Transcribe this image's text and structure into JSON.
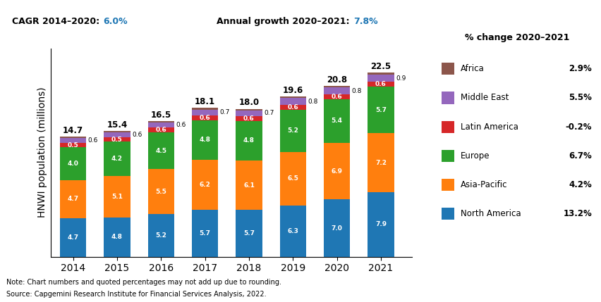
{
  "chart_data": {
    "type": "bar",
    "stacked": true,
    "categories": [
      "2014",
      "2015",
      "2016",
      "2017",
      "2018",
      "2019",
      "2020",
      "2021"
    ],
    "series": [
      {
        "name": "North America",
        "values": [
          4.7,
          4.8,
          5.2,
          5.7,
          5.7,
          6.3,
          7.0,
          7.9
        ],
        "data_labels": true,
        "pct_change": {
          "value": 13.2,
          "label": "13.2%"
        }
      },
      {
        "name": "Asia-Pacific",
        "values": [
          4.7,
          5.1,
          5.5,
          6.2,
          6.1,
          6.5,
          6.9,
          7.2
        ],
        "data_labels": true,
        "pct_change": {
          "value": 4.2,
          "label": "4.2%"
        }
      },
      {
        "name": "Europe",
        "values": [
          4.0,
          4.2,
          4.5,
          4.8,
          4.8,
          5.2,
          5.4,
          5.7
        ],
        "data_labels": true,
        "pct_change": {
          "value": 6.7,
          "label": "6.7%"
        }
      },
      {
        "name": "Latin America",
        "values": [
          0.5,
          0.5,
          0.6,
          0.6,
          0.6,
          0.6,
          0.6,
          0.6
        ],
        "data_labels": true,
        "pct_change": {
          "value": -0.2,
          "label": "-0.2%"
        }
      },
      {
        "name": "Middle East",
        "values": [
          0.6,
          0.6,
          0.6,
          0.7,
          0.7,
          0.8,
          0.8,
          0.9
        ],
        "data_labels": true,
        "pct_change": {
          "value": 5.5,
          "label": "5.5%"
        }
      },
      {
        "name": "Africa",
        "values": [
          0.2,
          0.2,
          0.2,
          0.2,
          0.2,
          0.2,
          0.2,
          0.2
        ],
        "data_labels": false,
        "pct_change": {
          "value": 2.9,
          "label": "2.9%"
        }
      }
    ],
    "totals": [
      14.7,
      15.4,
      16.5,
      18.1,
      18.0,
      19.6,
      20.8,
      22.5
    ],
    "y_label": "HNWI population (millions)",
    "ylim": [
      0,
      25.5
    ],
    "yticks": [],
    "tick_labels": "x",
    "grid": false,
    "legend_title": "% change 2020–2021",
    "annotations": [
      {
        "text": "CAGR 2014–2020:",
        "value": 6.0,
        "value_label": "6.0%"
      },
      {
        "text": "Annual growth 2020–2021:",
        "value": 7.8,
        "value_label": "7.8%"
      },
      {
        "text": "Note: Chart numbers and quoted percentages may not add up due to rounding."
      },
      {
        "text": "Source: Capgemini Research Institute for Financial Services Analysis, 2022."
      }
    ]
  }
}
